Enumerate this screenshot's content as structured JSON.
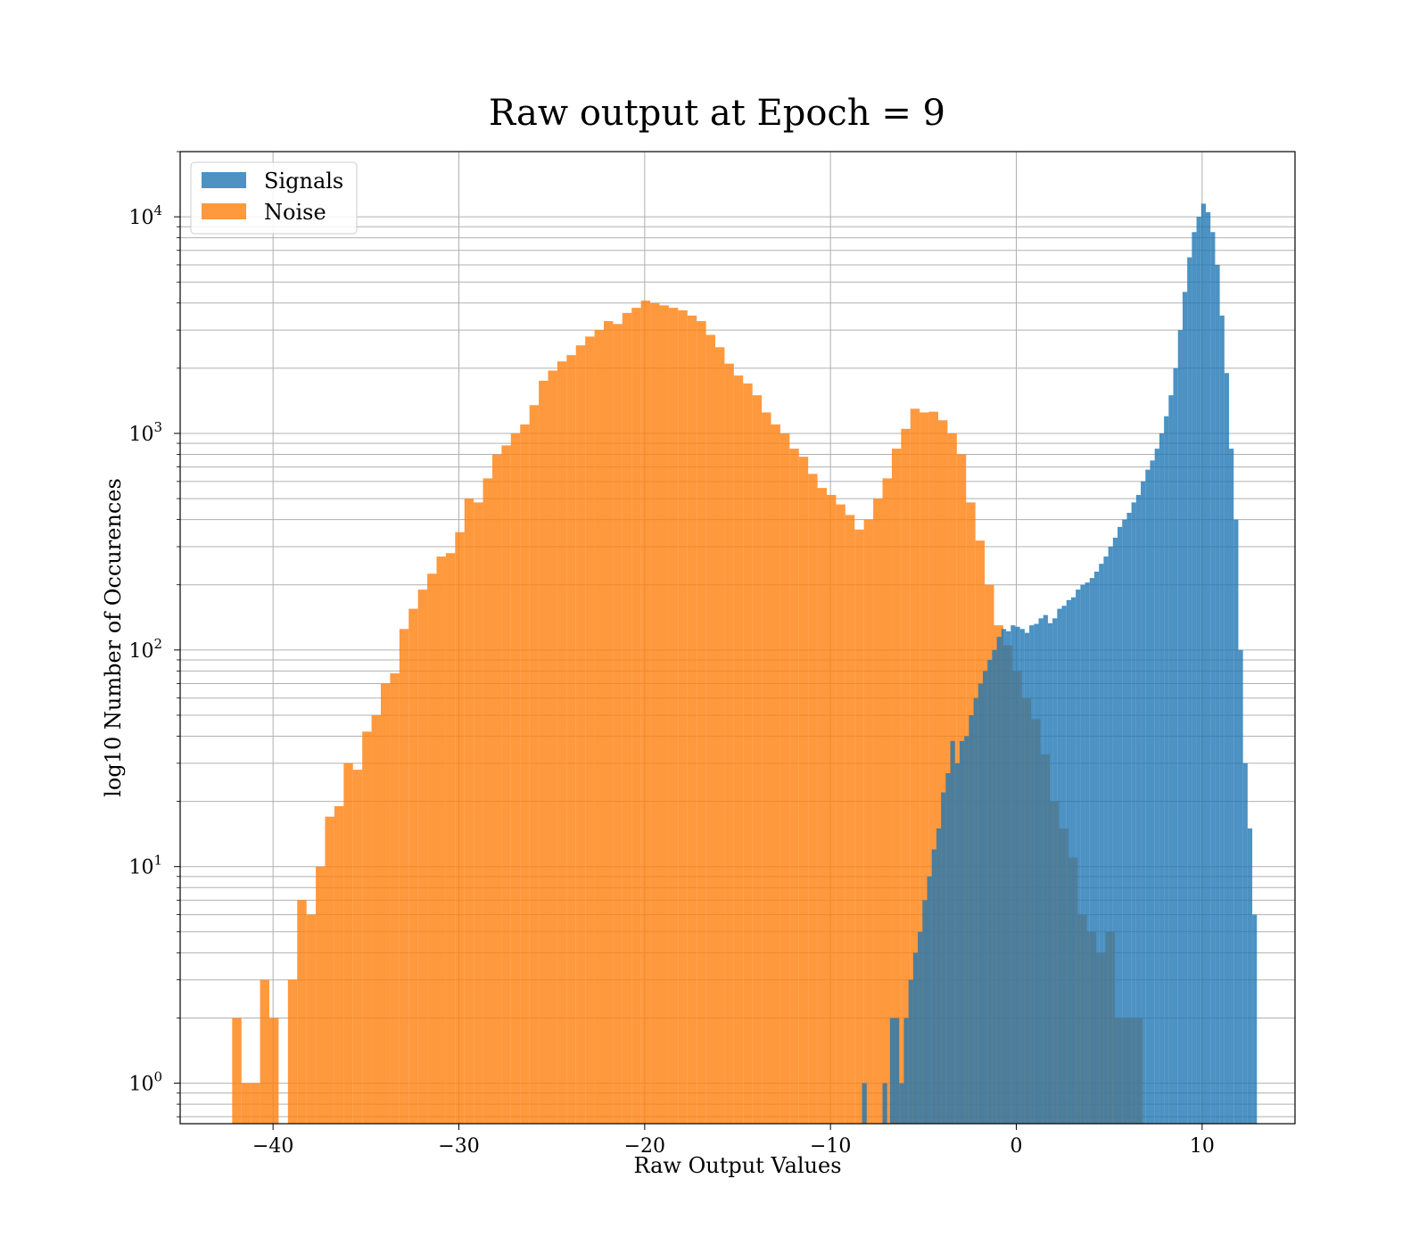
{
  "chart_data": {
    "type": "histogram",
    "title": "Raw output at Epoch = 9",
    "xlabel": "Raw Output Values",
    "ylabel": "log10 Number of Occurences",
    "xlim": [
      -45,
      15
    ],
    "ylim": [
      0.65,
      20000
    ],
    "yscale": "log",
    "grid": true,
    "legend_position": "top-left",
    "xticks": [
      -40,
      -30,
      -20,
      -10,
      0,
      10
    ],
    "xtick_labels": [
      "−40",
      "−30",
      "−20",
      "−10",
      "0",
      "10"
    ],
    "yticks": [
      {
        "value": 1,
        "base": "10",
        "exp": "0"
      },
      {
        "value": 10,
        "base": "10",
        "exp": "1"
      },
      {
        "value": 100,
        "base": "10",
        "exp": "2"
      },
      {
        "value": 1000,
        "base": "10",
        "exp": "3"
      },
      {
        "value": 10000,
        "base": "10",
        "exp": "4"
      }
    ],
    "series": [
      {
        "name": "Noise",
        "color": "#ff7f0e",
        "bin_width": 0.5,
        "bins": [
          [
            -42.2,
            2
          ],
          [
            -41.7,
            1
          ],
          [
            -41.2,
            1
          ],
          [
            -40.7,
            3
          ],
          [
            -40.2,
            2
          ],
          [
            -39.2,
            3
          ],
          [
            -38.7,
            7
          ],
          [
            -38.2,
            6
          ],
          [
            -37.7,
            10
          ],
          [
            -37.2,
            17
          ],
          [
            -36.7,
            19
          ],
          [
            -36.2,
            30
          ],
          [
            -35.7,
            28
          ],
          [
            -35.2,
            42
          ],
          [
            -34.7,
            50
          ],
          [
            -34.2,
            70
          ],
          [
            -33.7,
            78
          ],
          [
            -33.2,
            125
          ],
          [
            -32.7,
            155
          ],
          [
            -32.2,
            190
          ],
          [
            -31.7,
            225
          ],
          [
            -31.2,
            270
          ],
          [
            -30.7,
            280
          ],
          [
            -30.2,
            350
          ],
          [
            -29.7,
            500
          ],
          [
            -29.2,
            480
          ],
          [
            -28.7,
            620
          ],
          [
            -28.2,
            800
          ],
          [
            -27.7,
            880
          ],
          [
            -27.2,
            1000
          ],
          [
            -26.7,
            1100
          ],
          [
            -26.2,
            1350
          ],
          [
            -25.7,
            1750
          ],
          [
            -25.2,
            1950
          ],
          [
            -24.7,
            2150
          ],
          [
            -24.2,
            2300
          ],
          [
            -23.7,
            2550
          ],
          [
            -23.2,
            2800
          ],
          [
            -22.7,
            3000
          ],
          [
            -22.2,
            3300
          ],
          [
            -21.7,
            3200
          ],
          [
            -21.2,
            3600
          ],
          [
            -20.7,
            3800
          ],
          [
            -20.2,
            4100
          ],
          [
            -19.7,
            4000
          ],
          [
            -19.2,
            3900
          ],
          [
            -18.7,
            3800
          ],
          [
            -18.2,
            3700
          ],
          [
            -17.7,
            3500
          ],
          [
            -17.2,
            3300
          ],
          [
            -16.7,
            2850
          ],
          [
            -16.2,
            2500
          ],
          [
            -15.7,
            2100
          ],
          [
            -15.2,
            1850
          ],
          [
            -14.7,
            1700
          ],
          [
            -14.2,
            1500
          ],
          [
            -13.7,
            1250
          ],
          [
            -13.2,
            1100
          ],
          [
            -12.7,
            1000
          ],
          [
            -12.2,
            850
          ],
          [
            -11.7,
            780
          ],
          [
            -11.2,
            650
          ],
          [
            -10.7,
            560
          ],
          [
            -10.2,
            520
          ],
          [
            -9.7,
            470
          ],
          [
            -9.2,
            420
          ],
          [
            -8.7,
            360
          ],
          [
            -8.2,
            400
          ],
          [
            -7.7,
            500
          ],
          [
            -7.2,
            620
          ],
          [
            -6.7,
            850
          ],
          [
            -6.2,
            1050
          ],
          [
            -5.7,
            1300
          ],
          [
            -5.2,
            1250
          ],
          [
            -4.7,
            1260
          ],
          [
            -4.2,
            1150
          ],
          [
            -3.7,
            1000
          ],
          [
            -3.2,
            800
          ],
          [
            -2.7,
            480
          ],
          [
            -2.2,
            320
          ],
          [
            -1.7,
            200
          ],
          [
            -1.2,
            130
          ],
          [
            -0.7,
            105
          ],
          [
            -0.2,
            80
          ],
          [
            0.3,
            60
          ],
          [
            0.8,
            48
          ],
          [
            1.3,
            33
          ],
          [
            1.8,
            20
          ],
          [
            2.3,
            15
          ],
          [
            2.8,
            11
          ],
          [
            3.3,
            6
          ],
          [
            3.8,
            5
          ],
          [
            4.3,
            4
          ],
          [
            4.8,
            5
          ],
          [
            5.3,
            2
          ],
          [
            5.8,
            2
          ],
          [
            6.3,
            2
          ]
        ]
      },
      {
        "name": "Signals",
        "color": "#1f77b4",
        "bin_width": 0.25,
        "bins": [
          [
            -8.3,
            1
          ],
          [
            -7.2,
            1
          ],
          [
            -6.8,
            2
          ],
          [
            -6.55,
            2
          ],
          [
            -6.3,
            1
          ],
          [
            -6.05,
            2
          ],
          [
            -5.8,
            3
          ],
          [
            -5.55,
            4
          ],
          [
            -5.3,
            5
          ],
          [
            -5.05,
            7
          ],
          [
            -4.8,
            9
          ],
          [
            -4.55,
            12
          ],
          [
            -4.3,
            15
          ],
          [
            -4.05,
            22
          ],
          [
            -3.8,
            27
          ],
          [
            -3.55,
            38
          ],
          [
            -3.3,
            30
          ],
          [
            -3.05,
            38
          ],
          [
            -2.8,
            40
          ],
          [
            -2.55,
            50
          ],
          [
            -2.3,
            60
          ],
          [
            -2.05,
            70
          ],
          [
            -1.8,
            80
          ],
          [
            -1.55,
            90
          ],
          [
            -1.3,
            100
          ],
          [
            -1.05,
            115
          ],
          [
            -0.8,
            125
          ],
          [
            -0.55,
            122
          ],
          [
            -0.3,
            130
          ],
          [
            -0.05,
            128
          ],
          [
            0.2,
            125
          ],
          [
            0.45,
            120
          ],
          [
            0.7,
            130
          ],
          [
            0.95,
            132
          ],
          [
            1.2,
            140
          ],
          [
            1.45,
            145
          ],
          [
            1.7,
            133
          ],
          [
            1.95,
            140
          ],
          [
            2.2,
            155
          ],
          [
            2.45,
            160
          ],
          [
            2.7,
            170
          ],
          [
            2.95,
            175
          ],
          [
            3.2,
            190
          ],
          [
            3.45,
            200
          ],
          [
            3.7,
            205
          ],
          [
            3.95,
            215
          ],
          [
            4.2,
            230
          ],
          [
            4.45,
            250
          ],
          [
            4.7,
            270
          ],
          [
            4.95,
            300
          ],
          [
            5.2,
            330
          ],
          [
            5.45,
            370
          ],
          [
            5.7,
            400
          ],
          [
            5.95,
            430
          ],
          [
            6.2,
            480
          ],
          [
            6.45,
            520
          ],
          [
            6.7,
            600
          ],
          [
            6.95,
            680
          ],
          [
            7.2,
            750
          ],
          [
            7.45,
            850
          ],
          [
            7.7,
            1000
          ],
          [
            7.95,
            1200
          ],
          [
            8.2,
            1500
          ],
          [
            8.45,
            2000
          ],
          [
            8.7,
            3000
          ],
          [
            8.95,
            4500
          ],
          [
            9.2,
            6500
          ],
          [
            9.45,
            8500
          ],
          [
            9.7,
            10000
          ],
          [
            9.95,
            11500
          ],
          [
            10.2,
            10500
          ],
          [
            10.45,
            8500
          ],
          [
            10.7,
            6000
          ],
          [
            10.95,
            3500
          ],
          [
            11.2,
            1900
          ],
          [
            11.45,
            850
          ],
          [
            11.7,
            400
          ],
          [
            11.95,
            100
          ],
          [
            12.2,
            30
          ],
          [
            12.45,
            15
          ],
          [
            12.7,
            6
          ]
        ]
      }
    ]
  }
}
